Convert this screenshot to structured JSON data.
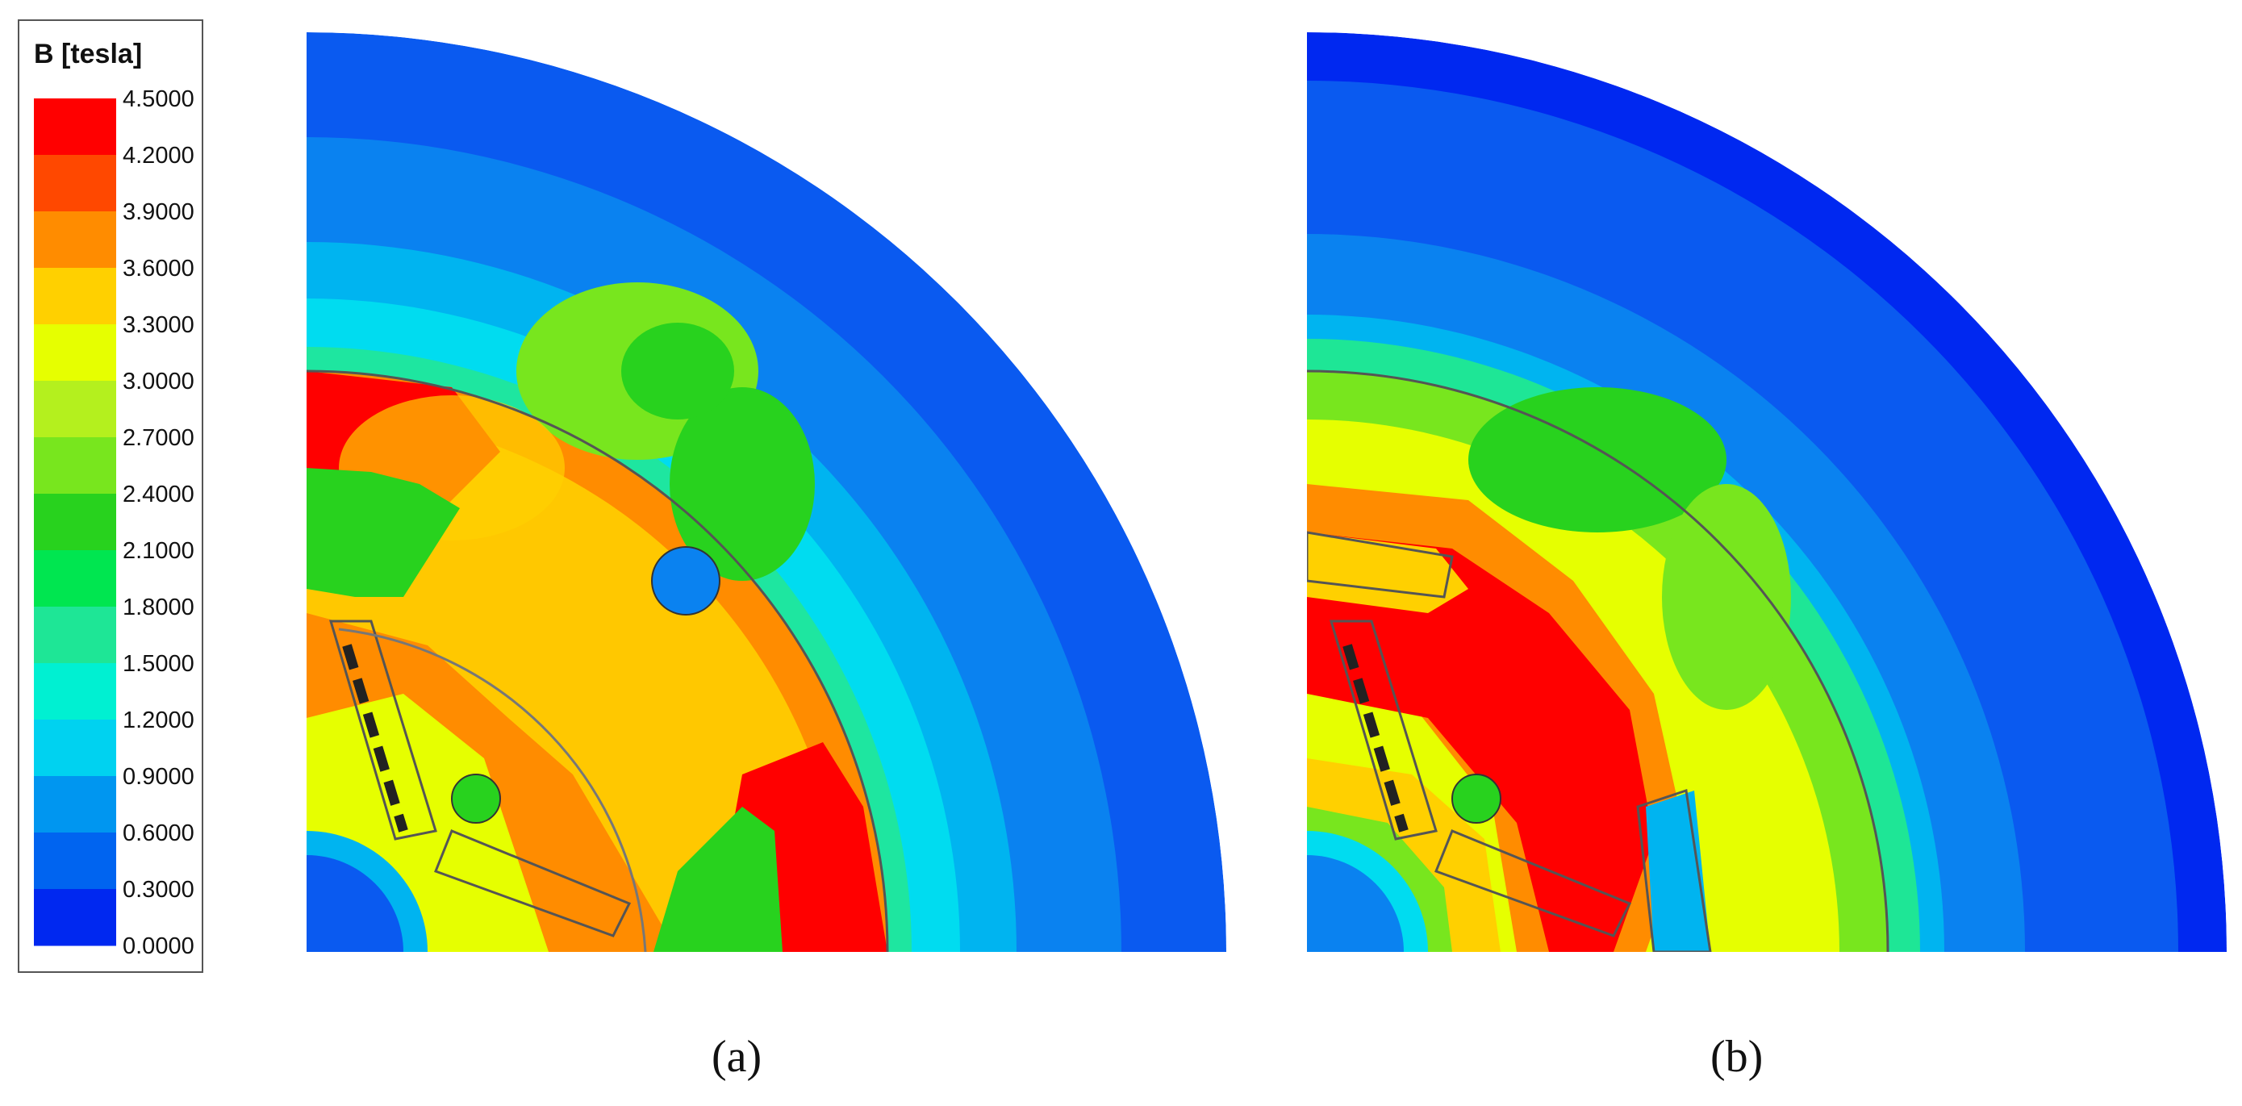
{
  "legend": {
    "title": "B [tesla]",
    "ticks": [
      "4.5000",
      "4.2000",
      "3.9000",
      "3.6000",
      "3.3000",
      "3.0000",
      "2.7000",
      "2.4000",
      "2.1000",
      "1.8000",
      "1.5000",
      "1.2000",
      "0.9000",
      "0.6000",
      "0.3000",
      "0.0000"
    ],
    "colors": [
      "#ff0000",
      "#ff4800",
      "#ff8c00",
      "#ffd000",
      "#e6ff00",
      "#b4f01e",
      "#78e61e",
      "#28d21e",
      "#00e650",
      "#1ee696",
      "#00f0d2",
      "#00d2f0",
      "#0096f0",
      "#0064f0",
      "#0028f0"
    ]
  },
  "panels": [
    {
      "id": "a",
      "caption": "(a)"
    },
    {
      "id": "b",
      "caption": "(b)"
    }
  ]
}
